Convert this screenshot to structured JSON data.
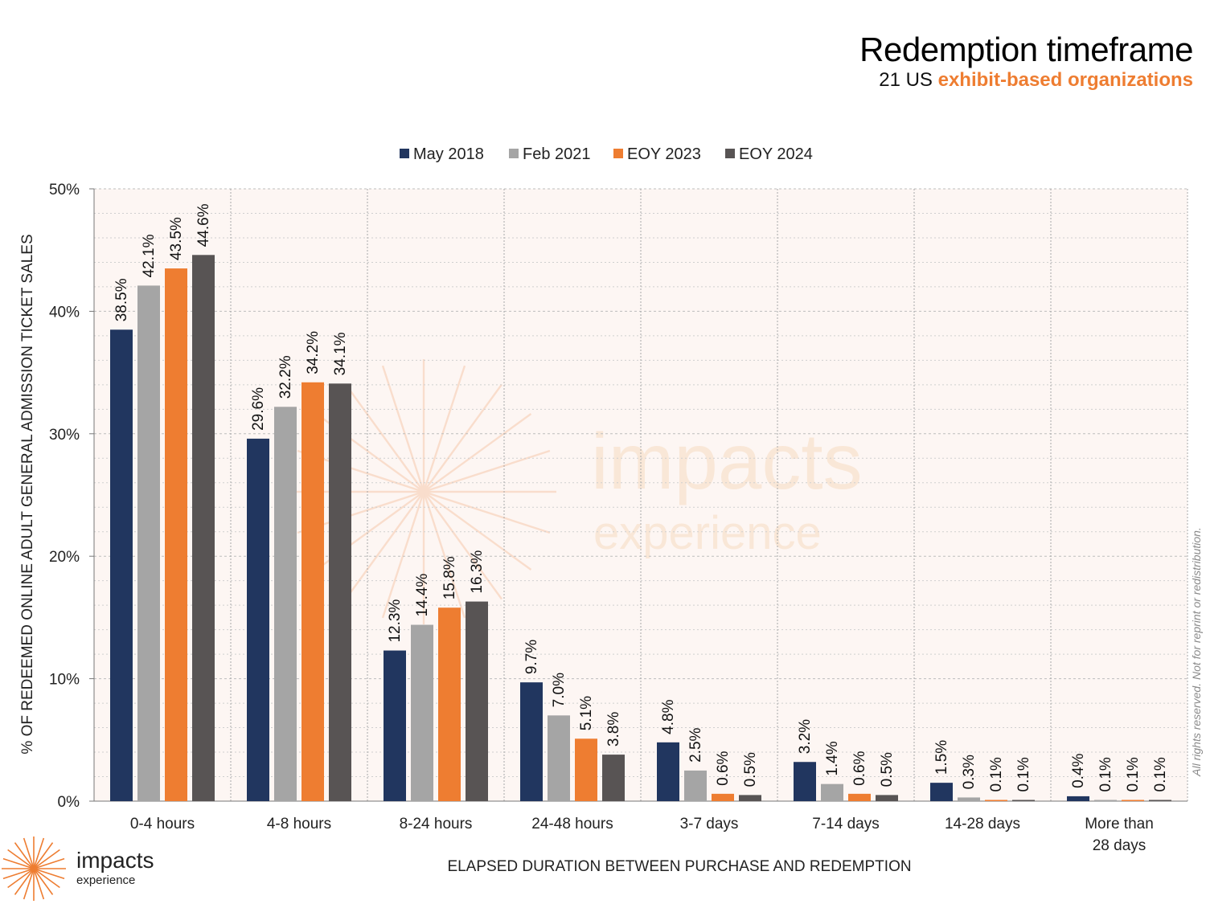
{
  "header": {
    "title": "Redemption timeframe",
    "subtitle_prefix": "21 US",
    "subtitle_highlight": "exhibit-based organizations"
  },
  "copyright": "All rights reserved. Not for reprint or redistribution.",
  "logo": {
    "line1": "impacts",
    "line2": "experience"
  },
  "watermark": {
    "line1": "impacts",
    "line2": "experience"
  },
  "colors": {
    "May 2018": "#21365f",
    "Feb 2021": "#a5a5a5",
    "EOY 2023": "#ee7d31",
    "EOY 2024": "#585454",
    "accent": "#ee7d31",
    "plot_background": "#fdf6f3"
  },
  "chart_data": {
    "type": "bar",
    "title": "Redemption timeframe",
    "xlabel": "ELAPSED DURATION BETWEEN PURCHASE AND REDEMPTION",
    "ylabel": "% OF REDEEMED ONLINE ADULT GENERAL ADMISSION TICKET SALES",
    "ylim": [
      0,
      50
    ],
    "yticks": [
      "0%",
      "10%",
      "20%",
      "30%",
      "40%",
      "50%"
    ],
    "legend_position": "top-center",
    "grid": true,
    "categories": [
      "0-4 hours",
      "4-8 hours",
      "8-24 hours",
      "24-48 hours",
      "3-7 days",
      "7-14 days",
      "14-28 days",
      "More than 28 days"
    ],
    "series": [
      {
        "name": "May 2018",
        "values": [
          38.5,
          29.6,
          12.3,
          9.7,
          4.8,
          3.2,
          1.5,
          0.4
        ],
        "labels": [
          "38.5%",
          "29.6%",
          "12.3%",
          "9.7%",
          "4.8%",
          "3.2%",
          "1.5%",
          "0.4%"
        ]
      },
      {
        "name": "Feb 2021",
        "values": [
          42.1,
          32.2,
          14.4,
          7.0,
          2.5,
          1.4,
          0.3,
          0.1
        ],
        "labels": [
          "42.1%",
          "32.2%",
          "14.4%",
          "7.0%",
          "2.5%",
          "1.4%",
          "0.3%",
          "0.1%"
        ]
      },
      {
        "name": "EOY 2023",
        "values": [
          43.5,
          34.2,
          15.8,
          5.1,
          0.6,
          0.6,
          0.1,
          0.1
        ],
        "labels": [
          "43.5%",
          "34.2%",
          "15.8%",
          "5.1%",
          "0.6%",
          "0.6%",
          "0.1%",
          "0.1%"
        ]
      },
      {
        "name": "EOY 2024",
        "values": [
          44.6,
          34.1,
          16.3,
          3.8,
          0.5,
          0.5,
          0.1,
          0.1
        ],
        "labels": [
          "44.6%",
          "34.1%",
          "16.3%",
          "3.8%",
          "0.5%",
          "0.5%",
          "0.1%",
          "0.1%"
        ]
      }
    ]
  }
}
